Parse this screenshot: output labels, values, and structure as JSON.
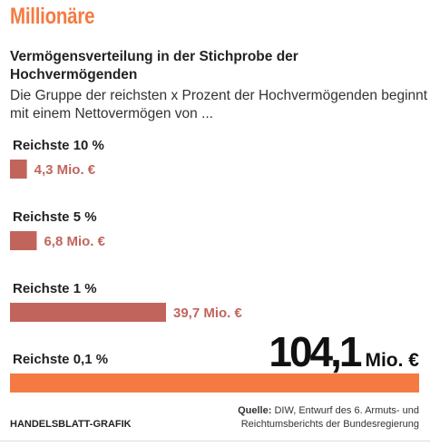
{
  "chart_data": {
    "type": "hbar",
    "title": "Millionäre",
    "subtitle": "Vermögensverteilung in der Stichprobe der Hochvermögenden",
    "description": "Die Gruppe der reichsten x Prozent der Hochvermögenden beginnt mit einem Nettovermögen von ...",
    "categories": [
      "Reichste 10 %",
      "Reichste 5 %",
      "Reichste 1 %",
      "Reichste 0,1 %"
    ],
    "values": [
      4.3,
      6.8,
      39.7,
      104.1
    ],
    "value_labels": [
      "4,3 Mio. €",
      "6,8 Mio. €",
      "39,7 Mio. €",
      "104,1 Mio. €"
    ],
    "colors": [
      "#c1655c",
      "#c1655c",
      "#c1655c",
      "#f47a42"
    ],
    "highlight": 3,
    "credit": "HANDELSBLATT-GRAFIK",
    "source_label": "Quelle:",
    "source": "DIW, Entwurf des 6. Armuts- und Reichtumsberichts der Bundesregierung"
  }
}
